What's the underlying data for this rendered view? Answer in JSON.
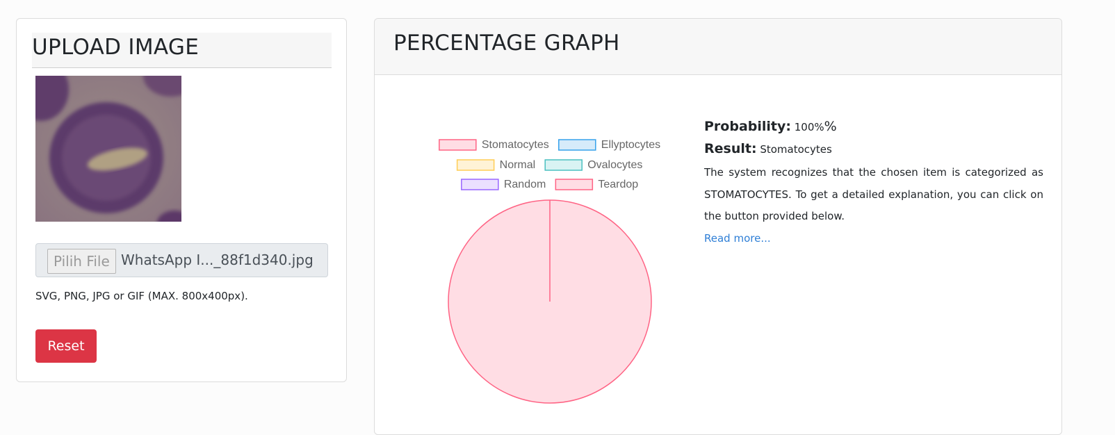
{
  "upload": {
    "title": "UPLOAD IMAGE",
    "file_button": "Pilih File",
    "file_name": "WhatsApp I..._88f1d340.jpg",
    "hint": "SVG, PNG, JPG or GIF (MAX. 800x400px).",
    "reset_label": "Reset"
  },
  "graph": {
    "title": "PERCENTAGE GRAPH"
  },
  "result": {
    "probability_label": "Probability:",
    "probability_value": "100%",
    "probability_suffix": "%",
    "result_label": "Result:",
    "result_value": "Stomatocytes",
    "description": "The system recognizes that the chosen item is categorized as STOMATOCYTES. To get a detailed explanation, you can click on the button provided below.",
    "read_more": "Read more..."
  },
  "chart_data": {
    "type": "pie",
    "categories": [
      "Stomatocytes",
      "Ellyptocytes",
      "Normal",
      "Ovalocytes",
      "Random",
      "Teardop"
    ],
    "values": [
      100,
      0,
      0,
      0,
      0,
      0
    ],
    "legend_position": "top",
    "series_fill": [
      "#ffdde4",
      "#d6ebfa",
      "#fff3d6",
      "#d9f3f3",
      "#ebe0ff",
      "#ffdde4"
    ],
    "series_stroke": [
      "#ff6384",
      "#36a2eb",
      "#ffcd56",
      "#4bc0c0",
      "#9966ff",
      "#ff6384"
    ]
  }
}
